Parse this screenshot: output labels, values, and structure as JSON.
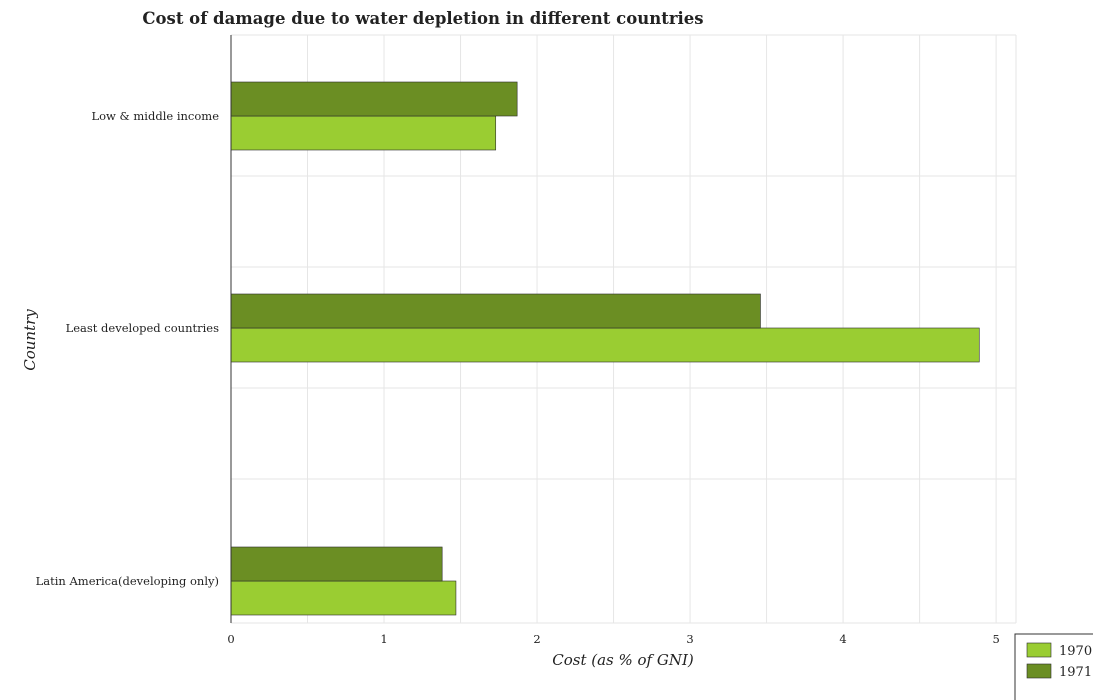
{
  "chart_data": {
    "type": "bar",
    "orientation": "horizontal",
    "title": "Cost of damage due to water depletion in different countries",
    "xlabel": "Cost (as % of GNI)",
    "ylabel": "Country",
    "categories": [
      "Latin America(developing only)",
      "Least developed countries",
      "Low & middle income"
    ],
    "series": [
      {
        "name": "1970",
        "color": "#9acd32",
        "values": [
          1.47,
          4.89,
          1.73
        ]
      },
      {
        "name": "1971",
        "color": "#6b8e23",
        "values": [
          1.38,
          3.46,
          1.87
        ]
      }
    ],
    "xlim": [
      0,
      5.13
    ],
    "xticks": [
      0,
      1,
      2,
      3,
      4,
      5
    ],
    "grid": true,
    "legend_position": "bottom-right"
  }
}
